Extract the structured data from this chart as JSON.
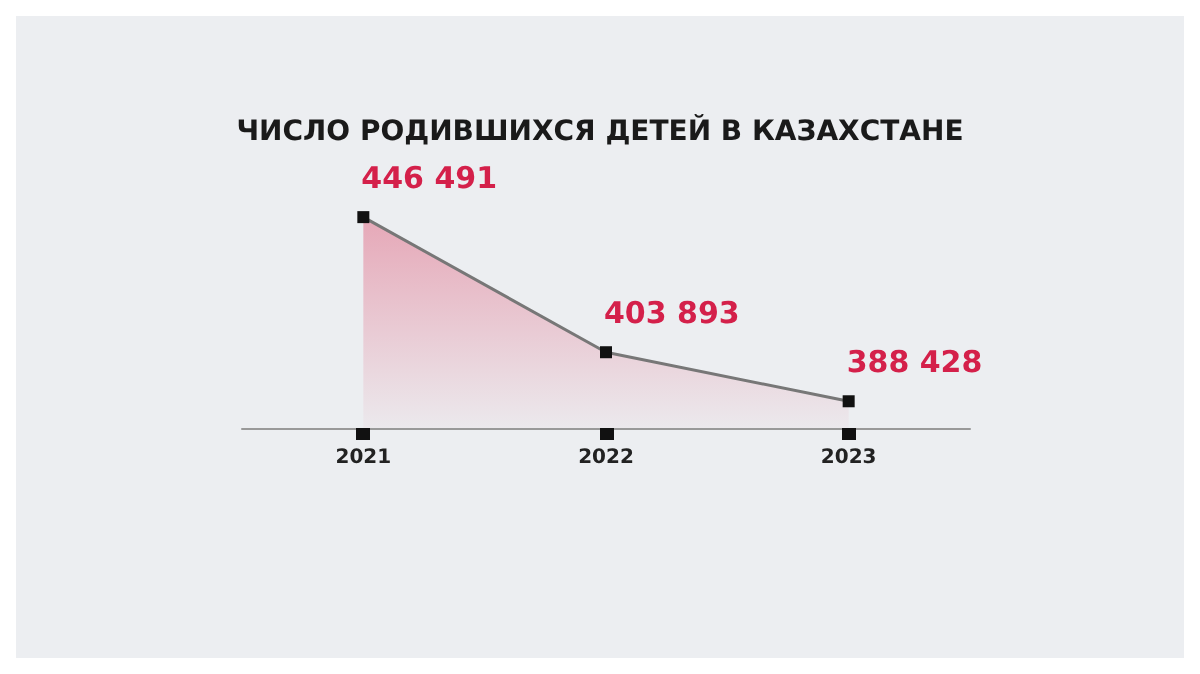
{
  "chart_data": {
    "type": "area",
    "title": "ЧИСЛО РОДИВШИХСЯ ДЕТЕЙ В КАЗАХСТАНЕ",
    "categories": [
      "2021",
      "2022",
      "2023"
    ],
    "series": [
      {
        "color": "#e27a92",
        "values": [
          446491,
          403893,
          388428
        ],
        "value_labels": [
          "446 491",
          "403 893",
          "388 428"
        ]
      }
    ],
    "tick_labels": "x",
    "grid": false,
    "marker": "square"
  }
}
